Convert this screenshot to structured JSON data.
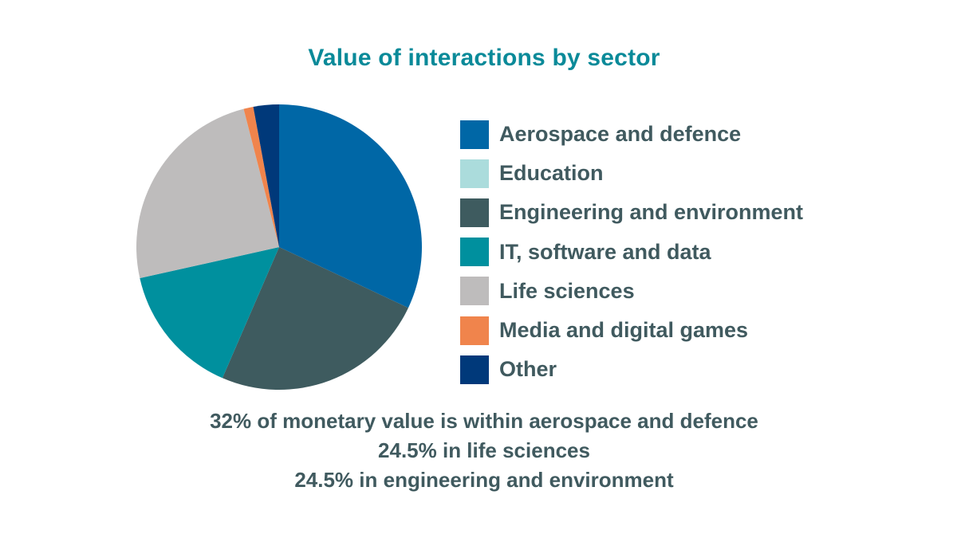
{
  "chart_data": {
    "type": "pie",
    "title": "Value of interactions by sector",
    "categories": [
      "Aerospace and defence",
      "Education",
      "Engineering and environment",
      "IT, software and data",
      "Life sciences",
      "Media and digital games",
      "Other"
    ],
    "values": [
      32,
      0,
      24.5,
      15,
      24.5,
      1.1,
      2.9
    ],
    "colors": [
      "#0067a6",
      "#abdcdc",
      "#3e5b5f",
      "#00909e",
      "#bebcbc",
      "#f0844c",
      "#00397a"
    ],
    "legend_position": "right",
    "annotations": [
      "32% of monetary value is within aerospace and defence",
      "24.5% in life sciences",
      "24.5% in engineering and environment"
    ]
  }
}
